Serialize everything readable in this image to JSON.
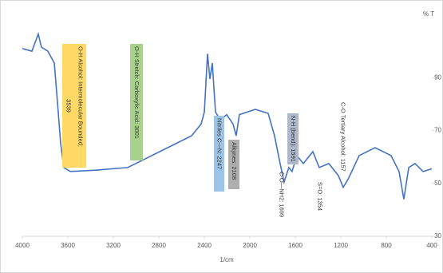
{
  "chart_data": {
    "type": "line",
    "x_label": "1/cm",
    "y_label": "% T",
    "xlim": [
      4000,
      400
    ],
    "xticks": [
      4000,
      3600,
      3200,
      2800,
      2400,
      2000,
      1600,
      1200,
      800,
      400
    ],
    "ylim": [
      30,
      110
    ],
    "yticks": [
      30,
      50,
      70,
      90
    ],
    "series": [
      {
        "color": "#4472c4",
        "x": [
          4000,
          3916,
          3860,
          3832,
          3776,
          3719,
          3691,
          3663,
          3635,
          3579,
          3354,
          3074,
          2933,
          2793,
          2512,
          2428,
          2400,
          2372,
          2351,
          2330,
          2302,
          2260,
          2204,
          2148,
          2120,
          2092,
          1952,
          1839,
          1783,
          1741,
          1699,
          1657,
          1629,
          1587,
          1530,
          1446,
          1390,
          1306,
          1222,
          1179,
          1137,
          1039,
          899,
          758,
          688,
          646,
          603,
          547,
          477,
          400
        ],
        "values": [
          101,
          100,
          106.5,
          101.5,
          100,
          95.5,
          80.5,
          65,
          56,
          54.5,
          55,
          56,
          59,
          62,
          68,
          72.5,
          77,
          99,
          89.5,
          95.5,
          77,
          74,
          76,
          72.5,
          68,
          76,
          78,
          76.5,
          68,
          59,
          50.5,
          56,
          54.5,
          60.5,
          57.5,
          62,
          56,
          57.5,
          53,
          48.5,
          51.5,
          60.5,
          63.5,
          60.5,
          54.5,
          44,
          56,
          57.5,
          54.5,
          55.5
        ]
      }
    ],
    "annotations": [
      {
        "text": [
          "O-H Alcohol: Intermolecular Bounded;",
          "3539"
        ]
      },
      {
        "text": [
          "O-H Stretch: Carboxylic Acid: 3001"
        ]
      },
      {
        "text": [
          "Nitriles C—N: 2247"
        ]
      },
      {
        "text": [
          "Alkynes: 2108"
        ]
      },
      {
        "text": [
          "N-H (bend): 1591"
        ]
      },
      {
        "text": [
          "C-O—NH2: 1699"
        ]
      },
      {
        "text": [
          "S=O: 1354"
        ]
      },
      {
        "text": [
          "C-O Tertiary Alcohol: 1157"
        ]
      }
    ]
  }
}
